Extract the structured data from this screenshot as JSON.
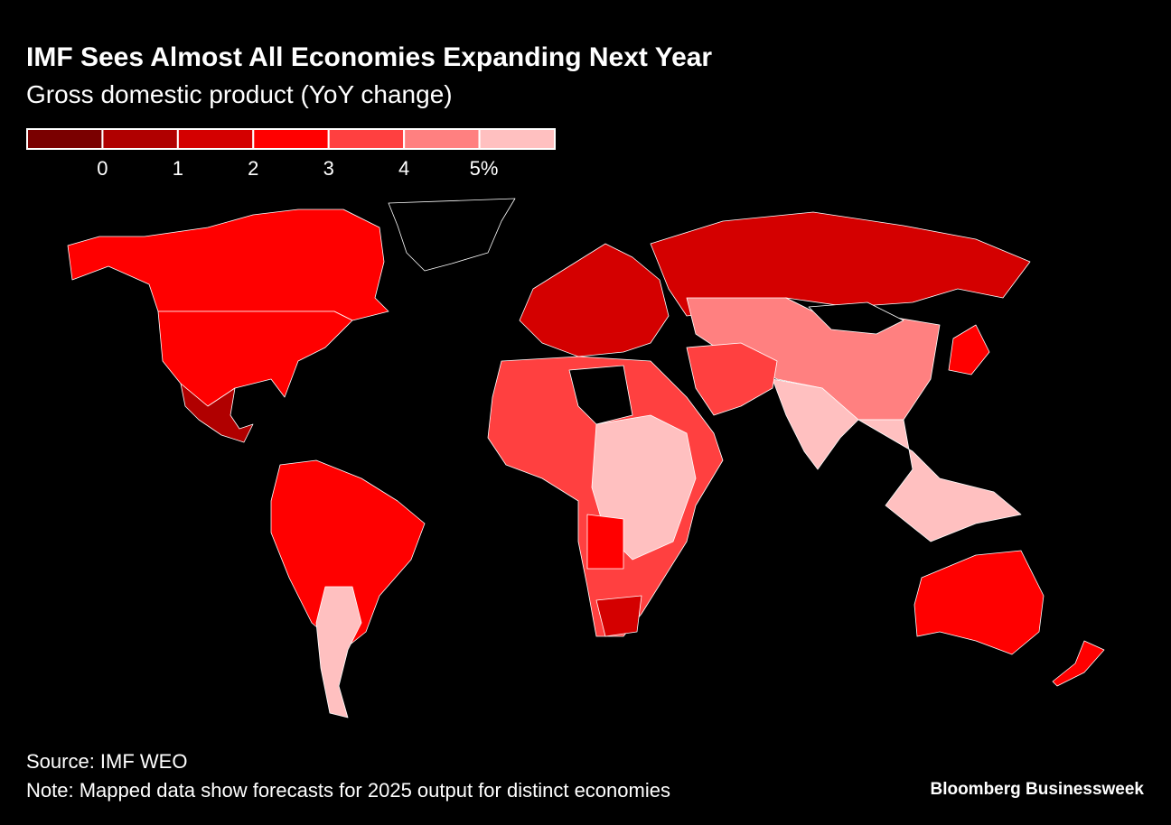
{
  "header": {
    "title": "IMF Sees Almost All Economies Expanding Next Year",
    "subtitle": "Gross domestic product (YoY change)"
  },
  "legend": {
    "colors": [
      "#7a0000",
      "#b00000",
      "#d40000",
      "#ff0000",
      "#ff4040",
      "#ff8080",
      "#ffc0c0"
    ],
    "ticks": [
      0,
      1,
      2,
      3,
      4,
      {
        "value": 5,
        "label": "5%"
      }
    ]
  },
  "footer": {
    "source": "Source: IMF WEO",
    "note": "Note: Mapped data show forecasts for 2025 output for distinct economies",
    "brand": "Bloomberg Businessweek"
  }
}
